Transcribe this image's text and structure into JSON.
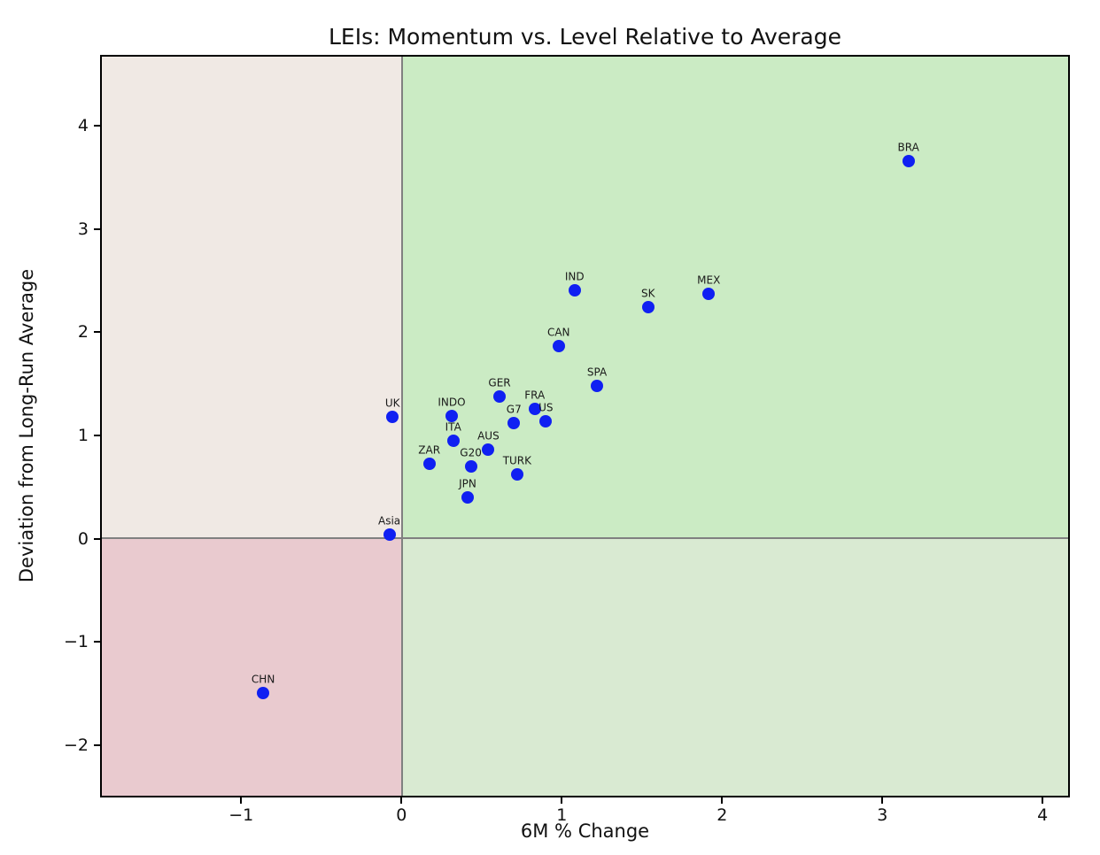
{
  "chart_data": {
    "type": "scatter",
    "title": "LEIs: Momentum vs. Level Relative to Average",
    "xlabel": "6M % Change",
    "ylabel": "Deviation from Long-Run Average",
    "xlim": [
      -1.88,
      4.17
    ],
    "ylim": [
      -2.51,
      4.69
    ],
    "x_ticks": [
      -1,
      0,
      1,
      2,
      3,
      4
    ],
    "y_ticks": [
      -2,
      -1,
      0,
      1,
      2,
      3,
      4
    ],
    "grid": false,
    "legend": false,
    "point_color": "#1020f2",
    "point_label_color": "#1a1a1a",
    "quadrants": {
      "top_left_color": "#f0e9e4",
      "top_right_color": "#cbebc4",
      "bottom_left_color": "#e9cacf",
      "bottom_right_color": "#d9ead2",
      "divider_color": "#808080",
      "divider_x": 0,
      "divider_y": 0
    },
    "points": [
      {
        "label": "BRA",
        "x": 3.17,
        "y": 3.67
      },
      {
        "label": "MEX",
        "x": 1.92,
        "y": 2.38
      },
      {
        "label": "IND",
        "x": 1.08,
        "y": 2.41
      },
      {
        "label": "SK",
        "x": 1.54,
        "y": 2.25
      },
      {
        "label": "CAN",
        "x": 0.98,
        "y": 1.87
      },
      {
        "label": "SPA",
        "x": 1.22,
        "y": 1.48
      },
      {
        "label": "GER",
        "x": 0.61,
        "y": 1.38
      },
      {
        "label": "FRA",
        "x": 0.83,
        "y": 1.26
      },
      {
        "label": "US",
        "x": 0.9,
        "y": 1.14
      },
      {
        "label": "G7",
        "x": 0.7,
        "y": 1.12
      },
      {
        "label": "INDO",
        "x": 0.31,
        "y": 1.19
      },
      {
        "label": "UK",
        "x": -0.06,
        "y": 1.18
      },
      {
        "label": "ITA",
        "x": 0.32,
        "y": 0.95
      },
      {
        "label": "AUS",
        "x": 0.54,
        "y": 0.86
      },
      {
        "label": "ZAR",
        "x": 0.17,
        "y": 0.72
      },
      {
        "label": "G20",
        "x": 0.43,
        "y": 0.7
      },
      {
        "label": "TURK",
        "x": 0.72,
        "y": 0.62
      },
      {
        "label": "JPN",
        "x": 0.41,
        "y": 0.4
      },
      {
        "label": "Asia",
        "x": -0.08,
        "y": 0.03
      },
      {
        "label": "CHN",
        "x": -0.87,
        "y": -1.51
      }
    ]
  }
}
